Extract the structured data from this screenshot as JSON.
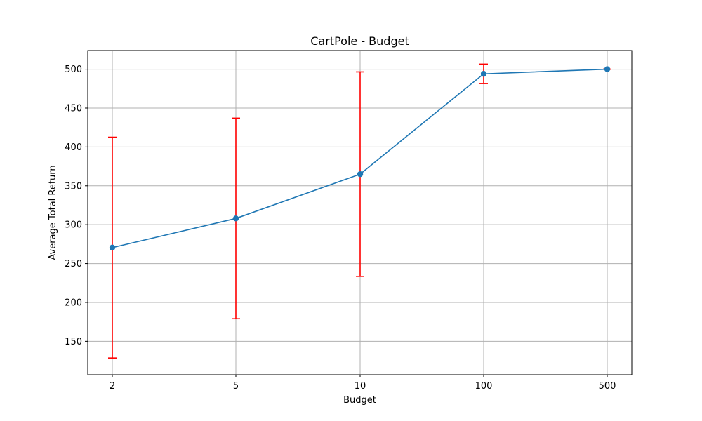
{
  "chart_data": {
    "type": "line",
    "title": "CartPole - Budget",
    "xlabel": "Budget",
    "ylabel": "Average Total Return",
    "categories": [
      "2",
      "5",
      "10",
      "100",
      "500"
    ],
    "series": [
      {
        "values": [
          270.5,
          308.0,
          365.0,
          494.0,
          500.0
        ],
        "error": [
          142.0,
          129.0,
          131.5,
          12.5,
          0.0
        ],
        "color": "#1f77b4",
        "error_color": "#ff0000",
        "marker": "circle"
      }
    ],
    "yticks": [
      150,
      200,
      250,
      300,
      350,
      400,
      450,
      500
    ],
    "ylim": [
      107,
      524
    ],
    "grid": true,
    "x_scale": "categorical"
  }
}
